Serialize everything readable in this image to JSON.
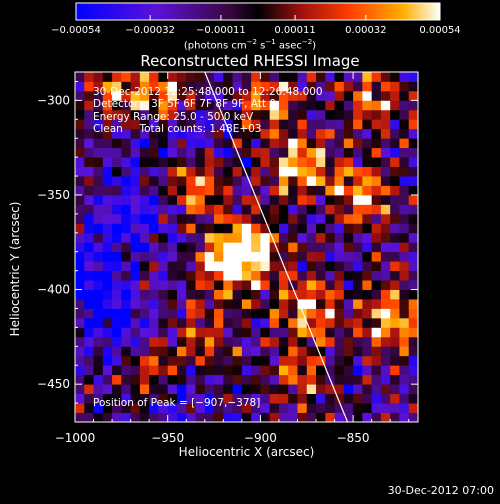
{
  "chart_data": {
    "type": "heatmap",
    "title": "Reconstructed RHESSI Image",
    "xlabel": "Heliocentric X (arcsec)",
    "ylabel": "Heliocentric Y (arcsec)",
    "xlim": [
      -1000,
      -815
    ],
    "ylim": [
      -470,
      -285
    ],
    "xticks": [
      -1000,
      -950,
      -900,
      -850
    ],
    "xtick_labels": [
      "−1000",
      "−950",
      "−900",
      "−850"
    ],
    "yticks": [
      -300,
      -350,
      -400,
      -450
    ],
    "ytick_labels": [
      "−300",
      "−350",
      "−400",
      "−450"
    ],
    "colorbar": {
      "ticks": [
        -0.00054,
        -0.00032,
        -0.00011,
        0.00011,
        0.00032,
        0.00054
      ],
      "tick_labels": [
        "−0.00054",
        "−0.00032",
        "−0.00011",
        "0.00011",
        "0.00032",
        "0.00054"
      ],
      "range": [
        -0.00054,
        0.00054
      ],
      "unit_parts": [
        "(photons cm",
        "−2",
        " s",
        "−1",
        " asec",
        "−2",
        ")"
      ]
    },
    "annotations": [
      "30-Dec-2012 12:25:48.000 to 12:26:48.000",
      "Detectors: 3F 5F 6F 7F 8F 9F, Att 0",
      "Energy Range: 25.0 - 50.0 keV",
      "Clean     Total counts: 1.48E+03"
    ],
    "peak_label": "Position of Peak = [−907,−378]",
    "peak": [
      -907,
      -378
    ],
    "limb_line": [
      [
        -930,
        -285
      ],
      [
        -853,
        -470
      ]
    ],
    "hotspots": [
      {
        "x": -905,
        "y": -378,
        "v": 1.0
      },
      {
        "x": -918,
        "y": -388,
        "v": 0.75
      },
      {
        "x": -880,
        "y": -335,
        "v": 0.9
      },
      {
        "x": -846,
        "y": -350,
        "v": 0.8
      },
      {
        "x": -830,
        "y": -415,
        "v": 0.85
      },
      {
        "x": -874,
        "y": -410,
        "v": 0.8
      },
      {
        "x": -935,
        "y": -345,
        "v": 0.7
      },
      {
        "x": -948,
        "y": -300,
        "v": 0.65
      },
      {
        "x": -975,
        "y": -295,
        "v": 0.6
      },
      {
        "x": -895,
        "y": -300,
        "v": 0.65
      },
      {
        "x": -960,
        "y": -440,
        "v": 0.55
      },
      {
        "x": -880,
        "y": -445,
        "v": 0.6
      },
      {
        "x": -838,
        "y": -300,
        "v": 0.6
      },
      {
        "x": -930,
        "y": -425,
        "v": 0.5
      }
    ],
    "coldspots": [
      {
        "x": -992,
        "y": -395,
        "v": 0.85
      },
      {
        "x": -972,
        "y": -360,
        "v": 0.75
      },
      {
        "x": -975,
        "y": -420,
        "v": 0.65
      },
      {
        "x": -940,
        "y": -315,
        "v": 0.55
      },
      {
        "x": -945,
        "y": -460,
        "v": 0.4
      }
    ]
  },
  "footer": {
    "timestamp": "30-Dec-2012 07:00"
  },
  "colors": {
    "background": "#000000",
    "text": "#ffffff",
    "limb_line": "#ffffff"
  }
}
